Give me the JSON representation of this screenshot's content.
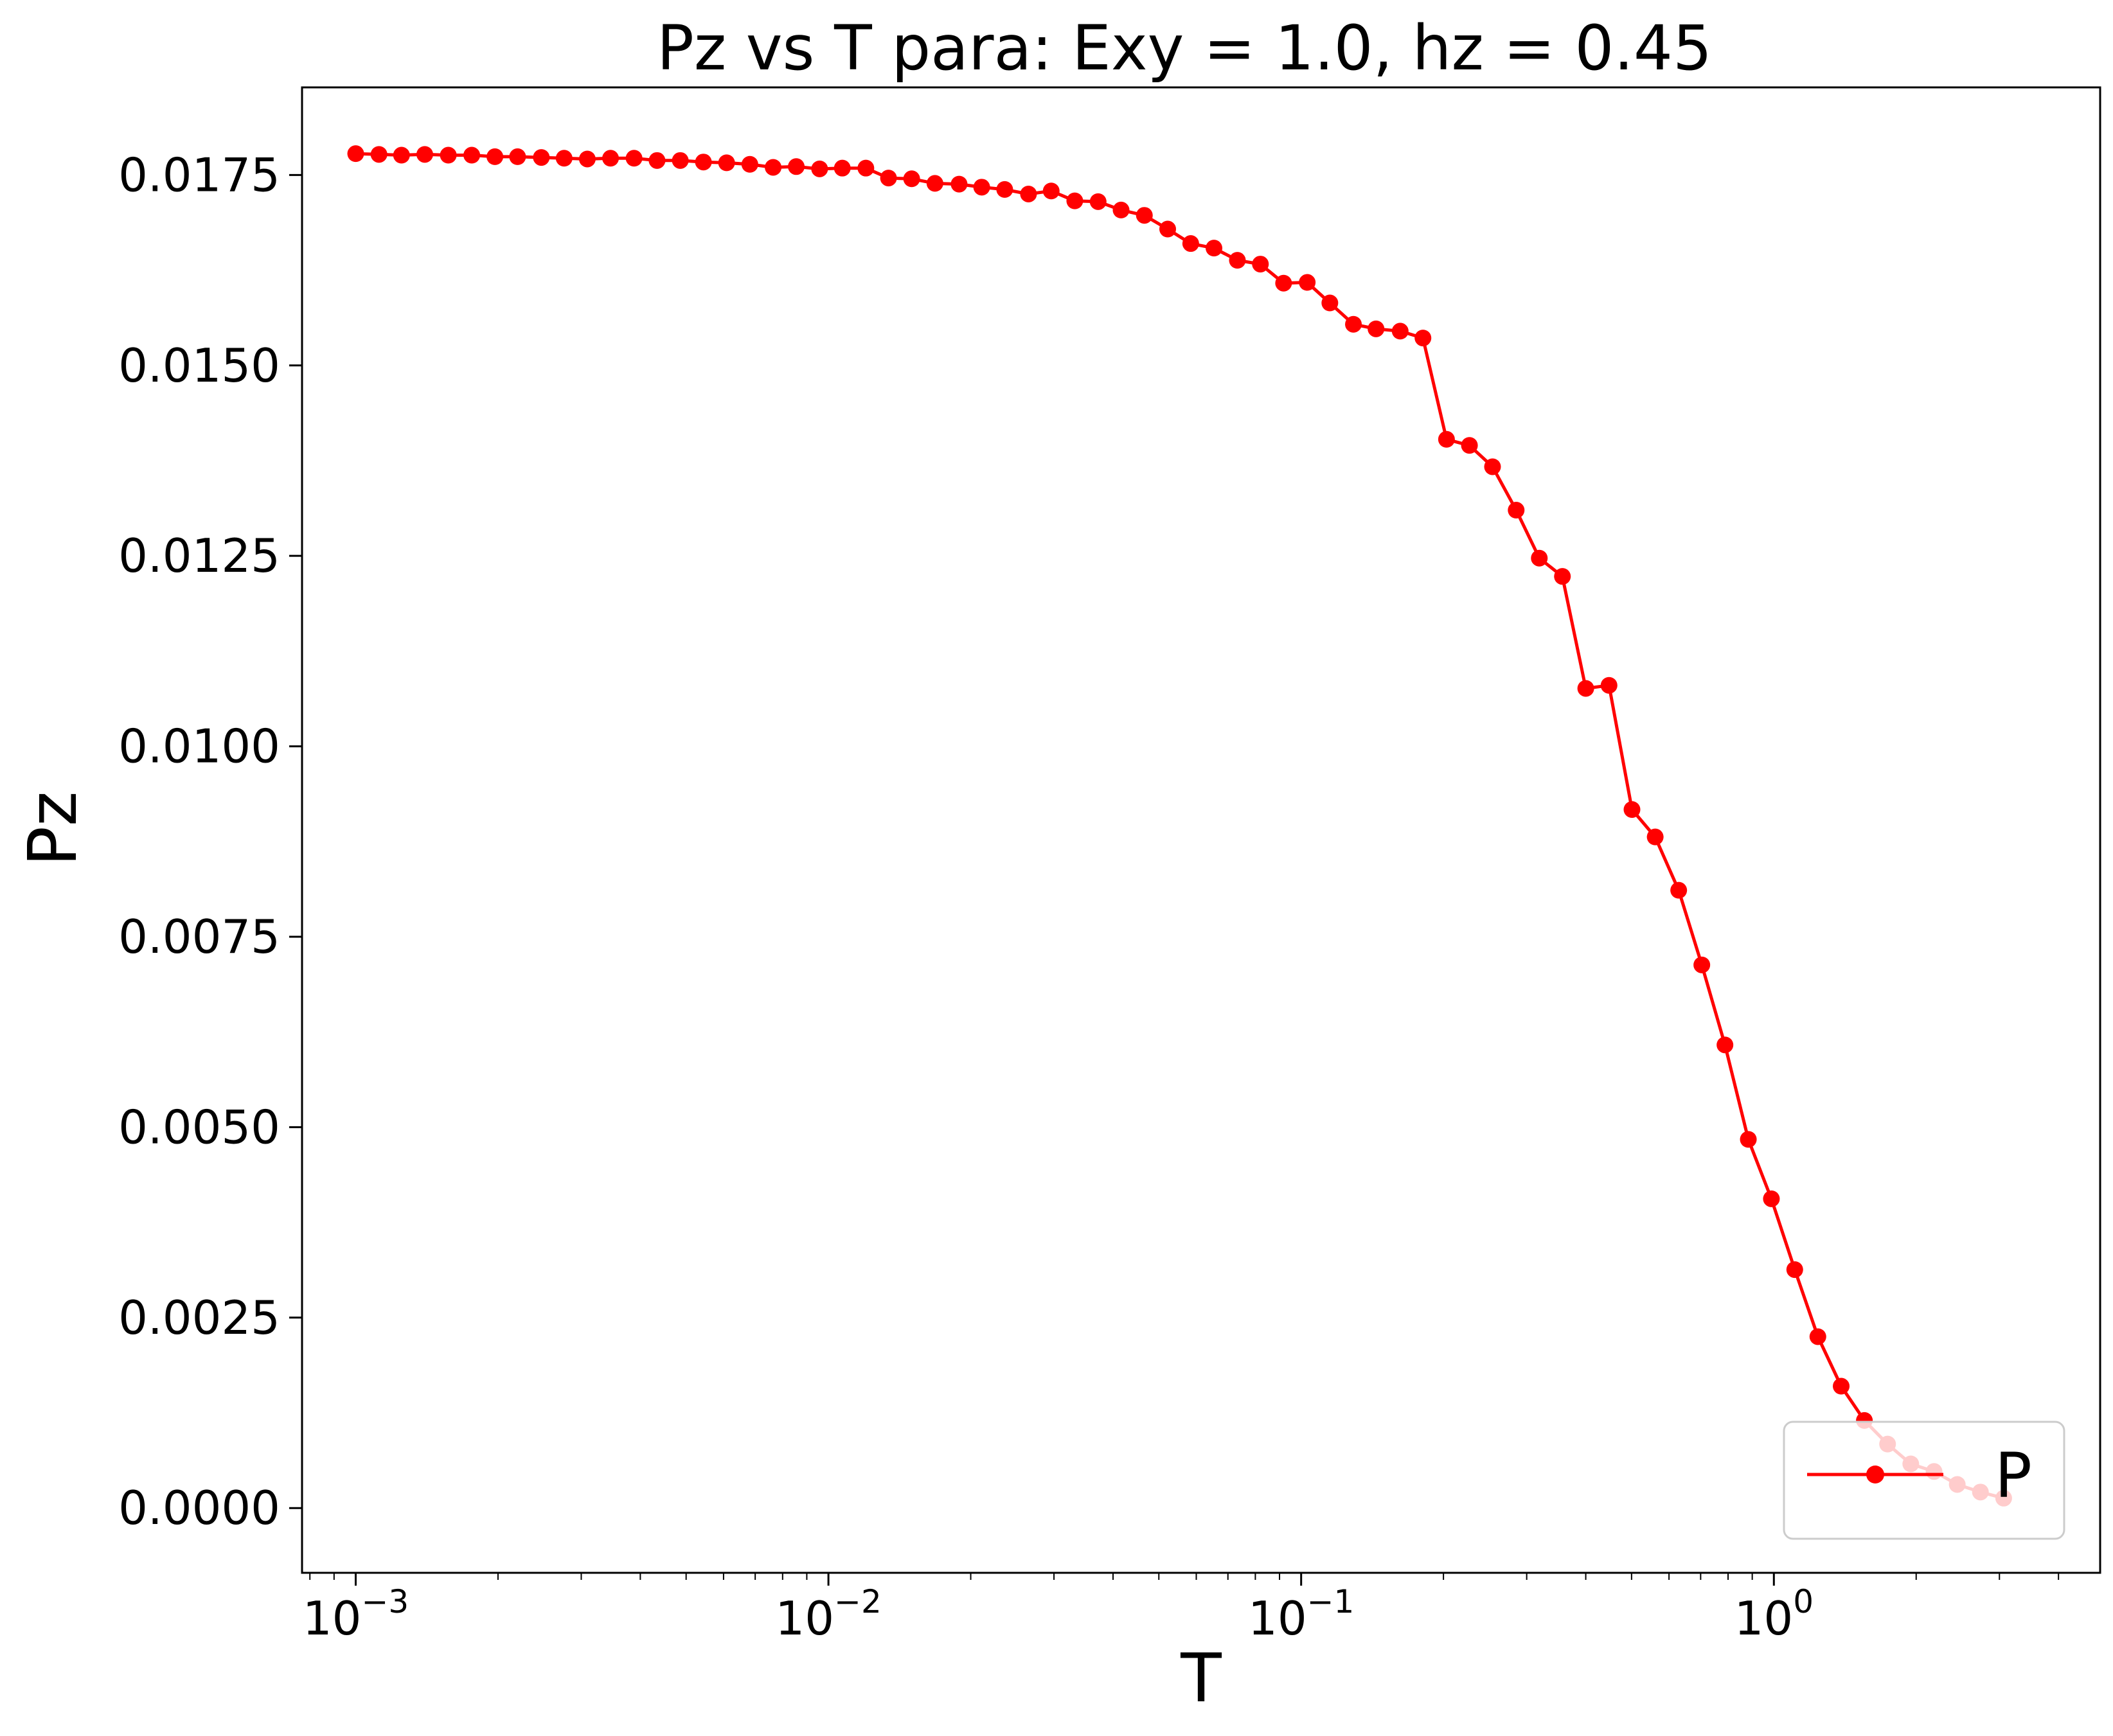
{
  "chart_data": {
    "type": "line",
    "title": "Pz vs T para: Exy = 1.0, hz = 0.45",
    "xlabel": "T",
    "ylabel": "Pz",
    "xscale": "log",
    "xlim": [
      0.00077,
      4.9
    ],
    "ylim": [
      -0.00085,
      0.01865
    ],
    "grid": false,
    "legend_position": "lower right",
    "xticks": [
      {
        "value": 0.001,
        "base": "10",
        "exp": "−3"
      },
      {
        "value": 0.01,
        "base": "10",
        "exp": "−2"
      },
      {
        "value": 0.1,
        "base": "10",
        "exp": "−1"
      },
      {
        "value": 1,
        "base": "10",
        "exp": "0"
      }
    ],
    "yticks": [
      {
        "value": 0.0,
        "label": "0.0000"
      },
      {
        "value": 0.0025,
        "label": "0.0025"
      },
      {
        "value": 0.005,
        "label": "0.0050"
      },
      {
        "value": 0.0075,
        "label": "0.0075"
      },
      {
        "value": 0.01,
        "label": "0.0100"
      },
      {
        "value": 0.0125,
        "label": "0.0125"
      },
      {
        "value": 0.015,
        "label": "0.0150"
      },
      {
        "value": 0.0175,
        "label": "0.0175"
      }
    ],
    "series": [
      {
        "name": "P",
        "color": "#ff0000",
        "marker": "circle",
        "x": [
          0.001,
          0.00112,
          0.00125,
          0.0014,
          0.00157,
          0.00176,
          0.00197,
          0.0022,
          0.00247,
          0.00276,
          0.00309,
          0.00346,
          0.00388,
          0.00434,
          0.00486,
          0.00544,
          0.00609,
          0.00682,
          0.00764,
          0.00855,
          0.00958,
          0.0107,
          0.012,
          0.0134,
          0.015,
          0.0168,
          0.0189,
          0.0211,
          0.0236,
          0.0265,
          0.0296,
          0.0332,
          0.0372,
          0.0416,
          0.0466,
          0.0522,
          0.0584,
          0.0654,
          0.0733,
          0.082,
          0.0918,
          0.103,
          0.115,
          0.129,
          0.144,
          0.162,
          0.181,
          0.203,
          0.227,
          0.254,
          0.285,
          0.319,
          0.357,
          0.4,
          0.448,
          0.501,
          0.561,
          0.629,
          0.704,
          0.788,
          0.883,
          0.988,
          1.107,
          1.239,
          1.388,
          1.554,
          1.74,
          1.948,
          2.182,
          2.443,
          2.735,
          3.063
        ],
        "values": [
          0.01778,
          0.01777,
          0.01776,
          0.01777,
          0.01776,
          0.01776,
          0.01774,
          0.01774,
          0.01773,
          0.01772,
          0.01771,
          0.01772,
          0.01772,
          0.01769,
          0.01769,
          0.01767,
          0.01766,
          0.01764,
          0.0176,
          0.01761,
          0.01758,
          0.01759,
          0.01759,
          0.01746,
          0.01745,
          0.01739,
          0.01738,
          0.01734,
          0.01731,
          0.01725,
          0.01729,
          0.01716,
          0.01715,
          0.01704,
          0.01697,
          0.01679,
          0.0166,
          0.01654,
          0.01638,
          0.01633,
          0.01608,
          0.01609,
          0.01582,
          0.01554,
          0.01548,
          0.01545,
          0.01536,
          0.01403,
          0.01395,
          0.01367,
          0.0131,
          0.01247,
          0.01223,
          0.01076,
          0.0108,
          0.00917,
          0.00881,
          0.00811,
          0.00713,
          0.00608,
          0.00484,
          0.00406,
          0.00313,
          0.00225,
          0.0016,
          0.00115,
          0.00084,
          0.00058,
          0.00048,
          0.00031,
          0.00021,
          0.00013
        ]
      }
    ]
  }
}
